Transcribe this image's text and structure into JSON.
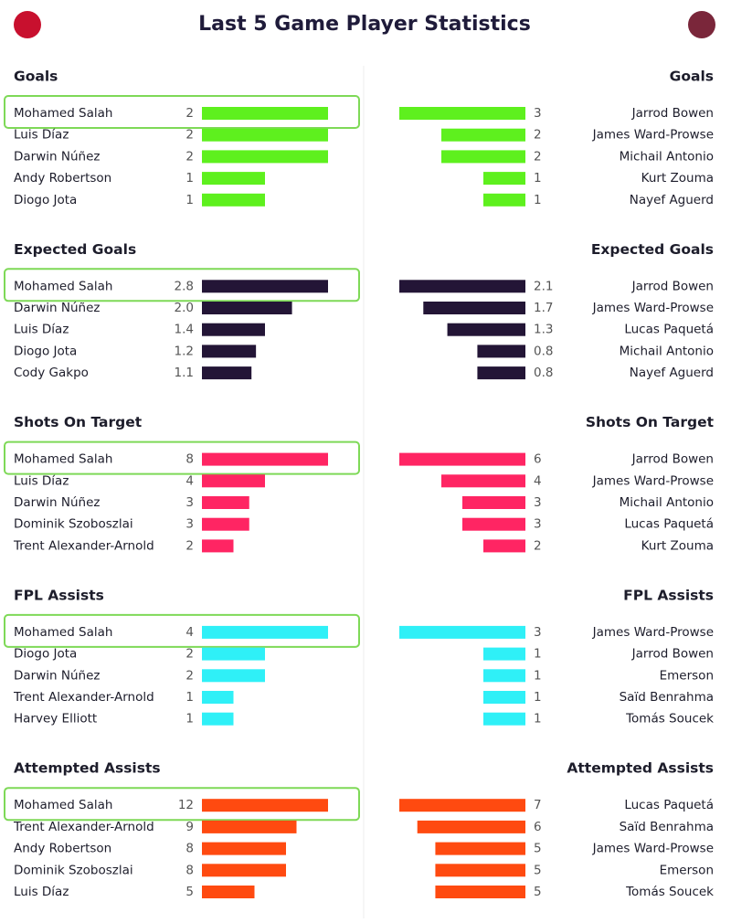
{
  "title": "Last 5 Game Player Statistics",
  "chart_data": [
    {
      "type": "bar",
      "title": "Goals",
      "color": "#5ef01e",
      "categories": [
        "Mohamed Salah",
        "Luis Díaz",
        "Darwin Núñez",
        "Andy Robertson",
        "Diogo Jota"
      ],
      "values": [
        2,
        2,
        2,
        1,
        1
      ]
    },
    {
      "type": "bar",
      "title": "Goals",
      "color": "#5ef01e",
      "categories": [
        "Jarrod Bowen",
        "James Ward-Prowse",
        "Michail Antonio",
        "Kurt Zouma",
        "Nayef Aguerd"
      ],
      "values": [
        3,
        2,
        2,
        1,
        1
      ]
    },
    {
      "type": "bar",
      "title": "Expected Goals",
      "color": "#231536",
      "categories": [
        "Mohamed Salah",
        "Darwin Núñez",
        "Luis Díaz",
        "Diogo Jota",
        "Cody Gakpo"
      ],
      "values": [
        2.8,
        2.0,
        1.4,
        1.2,
        1.1
      ],
      "value_labels": [
        "2.8",
        "2.0",
        "1.4",
        "1.2",
        "1.1"
      ]
    },
    {
      "type": "bar",
      "title": "Expected Goals",
      "color": "#231536",
      "categories": [
        "Jarrod Bowen",
        "James Ward-Prowse",
        "Lucas Paquetá",
        "Michail Antonio",
        "Nayef Aguerd"
      ],
      "values": [
        2.1,
        1.7,
        1.3,
        0.8,
        0.8
      ]
    },
    {
      "type": "bar",
      "title": "Shots On Target",
      "color": "#ff2563",
      "categories": [
        "Mohamed Salah",
        "Luis Díaz",
        "Darwin Núñez",
        "Dominik Szoboszlai",
        "Trent Alexander-Arnold"
      ],
      "values": [
        8,
        4,
        3,
        3,
        2
      ]
    },
    {
      "type": "bar",
      "title": "Shots On Target",
      "color": "#ff2563",
      "categories": [
        "Jarrod Bowen",
        "James Ward-Prowse",
        "Michail Antonio",
        "Lucas Paquetá",
        "Kurt Zouma"
      ],
      "values": [
        6,
        4,
        3,
        3,
        2
      ]
    },
    {
      "type": "bar",
      "title": "FPL Assists",
      "color": "#2ff0f7",
      "categories": [
        "Mohamed Salah",
        "Diogo Jota",
        "Darwin Núñez",
        "Trent Alexander-Arnold",
        "Harvey Elliott"
      ],
      "values": [
        4,
        2,
        2,
        1,
        1
      ]
    },
    {
      "type": "bar",
      "title": "FPL Assists",
      "color": "#2ff0f7",
      "categories": [
        "James Ward-Prowse",
        "Jarrod Bowen",
        "Emerson",
        "Saïd Benrahma",
        "Tomás Soucek"
      ],
      "values": [
        3,
        1,
        1,
        1,
        1
      ]
    },
    {
      "type": "bar",
      "title": "Attempted Assists",
      "color": "#ff4a10",
      "categories": [
        "Mohamed Salah",
        "Trent Alexander-Arnold",
        "Andy Robertson",
        "Dominik Szoboszlai",
        "Luis Díaz"
      ],
      "values": [
        12,
        9,
        8,
        8,
        5
      ]
    },
    {
      "type": "bar",
      "title": "Attempted Assists",
      "color": "#ff4a10",
      "categories": [
        "Lucas Paquetá",
        "Saïd Benrahma",
        "James Ward-Prowse",
        "Emerson",
        "Tomás Soucek"
      ],
      "values": [
        7,
        6,
        5,
        5,
        5
      ]
    }
  ]
}
